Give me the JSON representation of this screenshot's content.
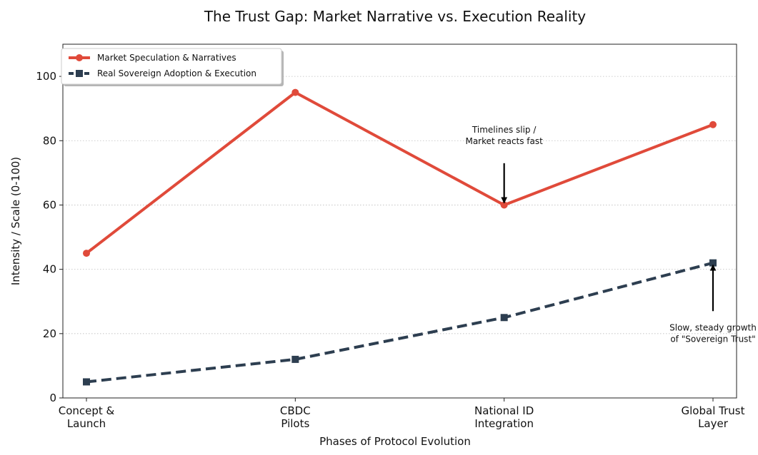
{
  "chart_data": {
    "type": "line",
    "title": "The Trust Gap: Market Narrative vs. Execution Reality",
    "xlabel": "Phases of Protocol Evolution",
    "ylabel": "Intensity / Scale (0-100)",
    "ylim": [
      0,
      110
    ],
    "yticks": [
      0,
      20,
      40,
      60,
      80,
      100
    ],
    "grid": "y-dotted",
    "legend_position": "top-left",
    "categories": [
      [
        "Concept &",
        "Launch"
      ],
      [
        "CBDC",
        "Pilots"
      ],
      [
        "National ID",
        "Integration"
      ],
      [
        "Global Trust",
        "Layer"
      ]
    ],
    "series": [
      {
        "name": "Market Speculation & Narratives",
        "values": [
          45,
          95,
          60,
          85
        ],
        "color": "#e04a3a",
        "style": "solid",
        "marker": "circle"
      },
      {
        "name": "Real Sovereign Adoption & Execution",
        "values": [
          5,
          12,
          25,
          42
        ],
        "color": "#2d3e50",
        "style": "dashed",
        "marker": "square"
      }
    ],
    "annotations": [
      {
        "lines": [
          "Timelines slip /",
          "Market reacts fast"
        ],
        "point_index": 2,
        "point_value": 60,
        "text_value": 79,
        "arrow_from_value": 73,
        "anchor": "above"
      },
      {
        "lines": [
          "Slow, steady growth",
          "of \"Sovereign Trust\""
        ],
        "point_index": 3,
        "point_value": 42,
        "text_value": 21,
        "arrow_from_value": 27,
        "anchor": "below"
      }
    ]
  }
}
